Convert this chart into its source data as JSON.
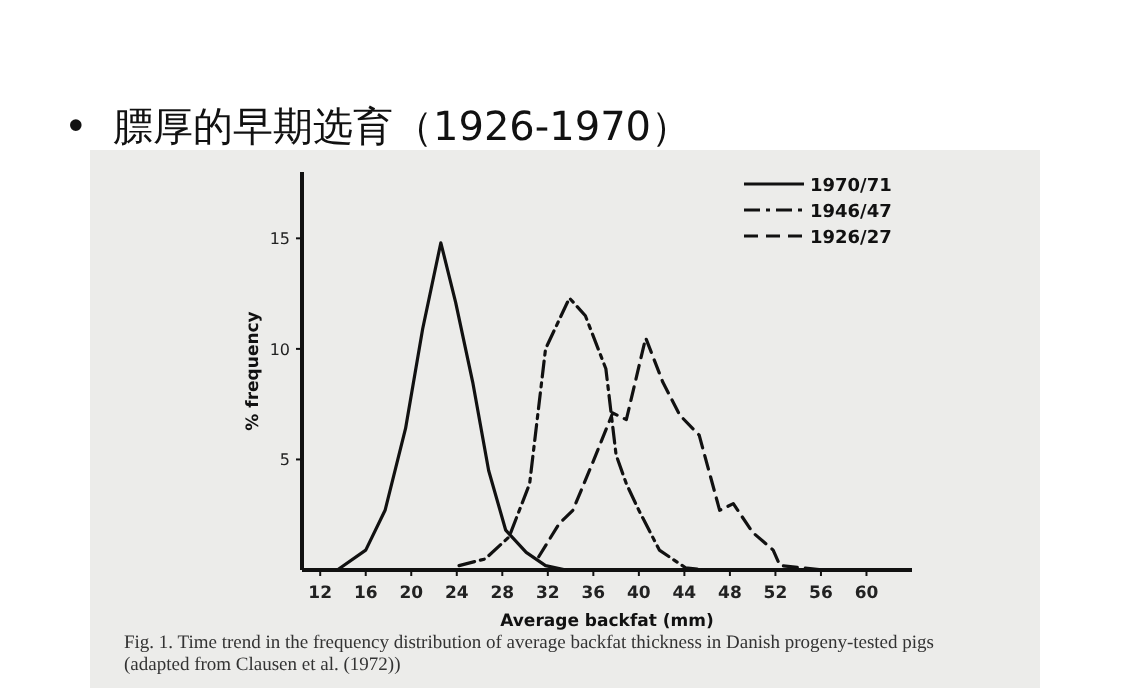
{
  "chart_data": {
    "type": "line",
    "title": "•  膘厚的早期选育（1926-1970）",
    "xlabel": "Average backfat (mm)",
    "ylabel": "% frequency",
    "annotations": [
      "Fig. 1. Time trend in the frequency distribution of average backfat thickness in Danish progeny-tested pigs (adapted from Clausen et al. (1972))"
    ],
    "xlim": [
      10.4,
      64
    ],
    "xticks": [
      12,
      16,
      20,
      24,
      28,
      32,
      36,
      40,
      44,
      48,
      52,
      56,
      60
    ],
    "ylim": [
      0,
      18
    ],
    "yticks": [
      5,
      10,
      15
    ],
    "legend": "top right",
    "grid": false,
    "series": [
      {
        "name": "1970/71",
        "color": "#111111",
        "line_style": "solid",
        "x": [
          13.5,
          16,
          17.7,
          19.5,
          21,
          22.6,
          23.9,
          25.4,
          26.8,
          28.3,
          30.1,
          31.8,
          33.6
        ],
        "values": [
          0,
          0.9,
          2.7,
          6.4,
          10.9,
          14.8,
          12.1,
          8.5,
          4.5,
          1.8,
          0.8,
          0.2,
          0
        ]
      },
      {
        "name": "1946/47",
        "color": "#111111",
        "line_style": "dashdot",
        "x": [
          24.2,
          26.5,
          28.6,
          30.4,
          31.8,
          33.9,
          35.3,
          37.1,
          38,
          38.9,
          40,
          41.8,
          44.1,
          45.9
        ],
        "values": [
          0.2,
          0.5,
          1.5,
          3.9,
          10,
          12.3,
          11.5,
          9.1,
          5.2,
          3.9,
          2.7,
          0.9,
          0.1,
          0
        ]
      },
      {
        "name": "1926/27",
        "color": "#111111",
        "line_style": "dashed",
        "x": [
          31.2,
          33,
          34.2,
          35.9,
          37.7,
          38.9,
          40.6,
          42.1,
          43.6,
          45.3,
          47.1,
          48.3,
          50,
          51.8,
          52.4,
          56.2
        ],
        "values": [
          0.6,
          2.1,
          2.7,
          4.8,
          7.1,
          6.8,
          10.5,
          8.5,
          7,
          6.1,
          2.7,
          3,
          1.7,
          0.9,
          0.2,
          0
        ]
      }
    ]
  }
}
